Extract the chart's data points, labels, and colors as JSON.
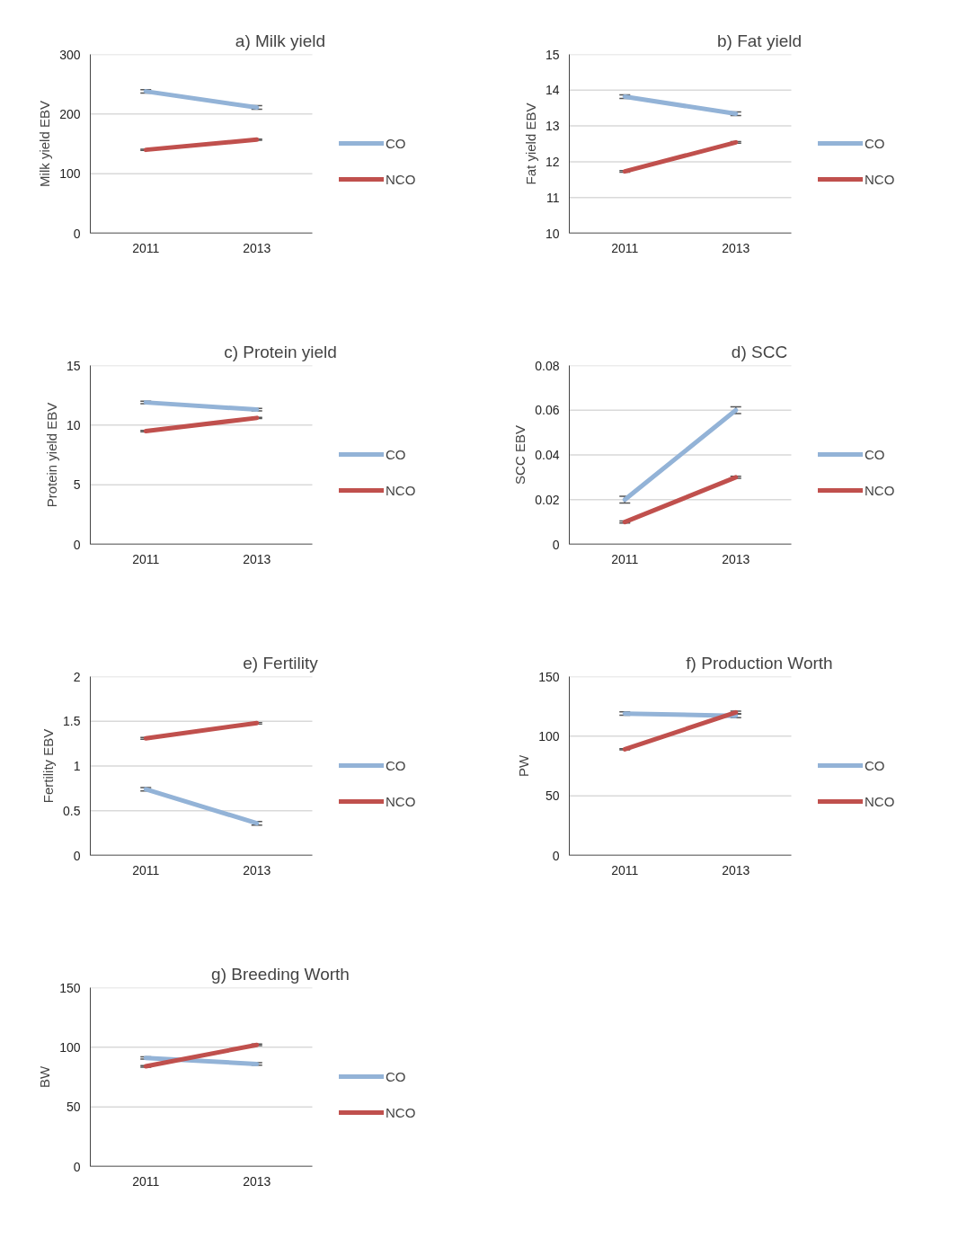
{
  "chart_data": [
    {
      "type": "line",
      "title": "a) Milk yield",
      "ylabel": "Milk yield EBV",
      "categories": [
        "2011",
        "2013"
      ],
      "ylim": [
        0,
        300
      ],
      "yticks": [
        0,
        100,
        200,
        300
      ],
      "grid": "y",
      "legend": "right",
      "marker": "none",
      "line_style": "solid",
      "series": [
        {
          "name": "CO",
          "color": "#93b3d7",
          "values": [
            238,
            211
          ],
          "errors": [
            3,
            3
          ]
        },
        {
          "name": "NCO",
          "color": "#c0504d",
          "values": [
            140,
            157
          ],
          "errors": [
            1,
            1
          ]
        }
      ]
    },
    {
      "type": "line",
      "title": "b) Fat yield",
      "ylabel": "Fat yield EBV",
      "categories": [
        "2011",
        "2013"
      ],
      "ylim": [
        10,
        15
      ],
      "yticks": [
        10,
        11,
        12,
        13,
        14,
        15
      ],
      "grid": "y",
      "legend": "right",
      "marker": "none",
      "line_style": "solid",
      "series": [
        {
          "name": "CO",
          "color": "#93b3d7",
          "values": [
            13.82,
            13.34
          ],
          "errors": [
            0.05,
            0.05
          ]
        },
        {
          "name": "NCO",
          "color": "#c0504d",
          "values": [
            11.73,
            12.54
          ],
          "errors": [
            0.02,
            0.02
          ]
        }
      ]
    },
    {
      "type": "line",
      "title": "c) Protein yield",
      "ylabel": "Protein yield EBV",
      "categories": [
        "2011",
        "2013"
      ],
      "ylim": [
        0,
        15
      ],
      "yticks": [
        0,
        5,
        10,
        15
      ],
      "grid": "y",
      "legend": "right",
      "marker": "none",
      "line_style": "solid",
      "series": [
        {
          "name": "CO",
          "color": "#93b3d7",
          "values": [
            11.9,
            11.3
          ],
          "errors": [
            0.1,
            0.1
          ]
        },
        {
          "name": "NCO",
          "color": "#c0504d",
          "values": [
            9.5,
            10.6
          ],
          "errors": [
            0.05,
            0.05
          ]
        }
      ]
    },
    {
      "type": "line",
      "title": "d) SCC",
      "ylabel": "SCC EBV",
      "categories": [
        "2011",
        "2013"
      ],
      "ylim": [
        0,
        0.08
      ],
      "yticks": [
        0,
        0.02,
        0.04,
        0.06,
        0.08
      ],
      "grid": "y",
      "legend": "right",
      "marker": "none",
      "line_style": "solid",
      "series": [
        {
          "name": "CO",
          "color": "#93b3d7",
          "values": [
            0.02,
            0.06
          ],
          "errors": [
            0.0015,
            0.0015
          ]
        },
        {
          "name": "NCO",
          "color": "#c0504d",
          "values": [
            0.01,
            0.03
          ],
          "errors": [
            0.0005,
            0.0005
          ]
        }
      ]
    },
    {
      "type": "line",
      "title": "e) Fertility",
      "ylabel": "Fertility EBV",
      "categories": [
        "2011",
        "2013"
      ],
      "ylim": [
        0,
        2
      ],
      "yticks": [
        0,
        0.5,
        1,
        1.5,
        2
      ],
      "grid": "y",
      "legend": "right",
      "marker": "none",
      "line_style": "solid",
      "series": [
        {
          "name": "CO",
          "color": "#93b3d7",
          "values": [
            0.74,
            0.36
          ],
          "errors": [
            0.02,
            0.02
          ]
        },
        {
          "name": "NCO",
          "color": "#c0504d",
          "values": [
            1.31,
            1.48
          ],
          "errors": [
            0.01,
            0.01
          ]
        }
      ]
    },
    {
      "type": "line",
      "title": "f) Production Worth",
      "ylabel": "PW",
      "categories": [
        "2011",
        "2013"
      ],
      "ylim": [
        0,
        150
      ],
      "yticks": [
        0,
        50,
        100,
        150
      ],
      "grid": "y",
      "legend": "right",
      "marker": "none",
      "line_style": "solid",
      "series": [
        {
          "name": "CO",
          "color": "#93b3d7",
          "values": [
            119,
            117
          ],
          "errors": [
            1.5,
            1.5
          ]
        },
        {
          "name": "NCO",
          "color": "#c0504d",
          "values": [
            89,
            120
          ],
          "errors": [
            0.5,
            1
          ]
        }
      ]
    },
    {
      "type": "line",
      "title": "g) Breeding Worth",
      "ylabel": "BW",
      "categories": [
        "2011",
        "2013"
      ],
      "ylim": [
        0,
        150
      ],
      "yticks": [
        0,
        50,
        100,
        150
      ],
      "grid": "y",
      "legend": "right",
      "marker": "none",
      "line_style": "solid",
      "series": [
        {
          "name": "CO",
          "color": "#93b3d7",
          "values": [
            91,
            86
          ],
          "errors": [
            1,
            1
          ]
        },
        {
          "name": "NCO",
          "color": "#c0504d",
          "values": [
            84,
            102
          ],
          "errors": [
            0.7,
            0.7
          ]
        }
      ]
    }
  ]
}
